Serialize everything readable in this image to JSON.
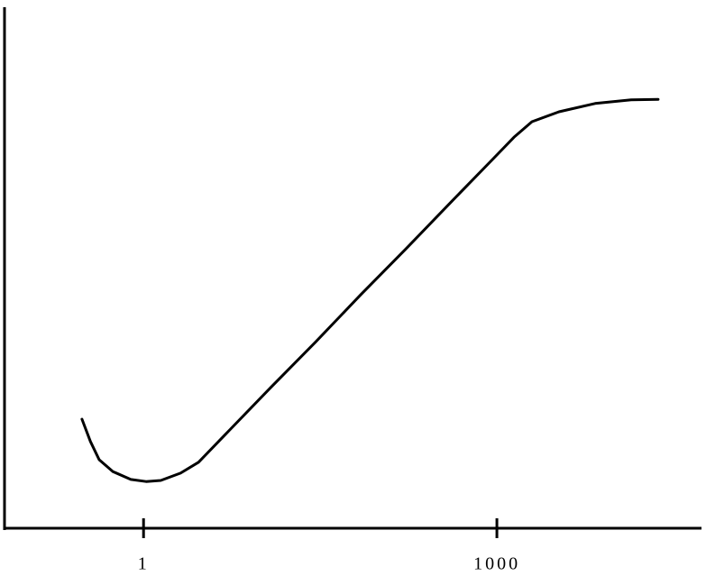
{
  "chart_data": {
    "type": "line",
    "xscale": "log",
    "x": [
      0.3,
      0.354,
      0.42,
      0.55,
      0.78,
      1.05,
      1.4,
      2.06,
      2.93,
      4.97,
      12,
      29,
      70,
      169,
      407,
      982,
      1397,
      1987,
      3373,
      6823,
      13800,
      23400
    ],
    "values": [
      21.0,
      16.7,
      13.2,
      10.9,
      9.4,
      9.0,
      9.2,
      10.6,
      12.7,
      18.1,
      27.1,
      35.9,
      45.0,
      53.8,
      62.8,
      71.7,
      75.3,
      78.3,
      80.2,
      81.8,
      82.5,
      82.6
    ],
    "color": "#000000",
    "xlim": [
      0.066,
      54600
    ],
    "xticks": [
      1,
      1000
    ],
    "ylim": [
      0,
      100
    ]
  }
}
